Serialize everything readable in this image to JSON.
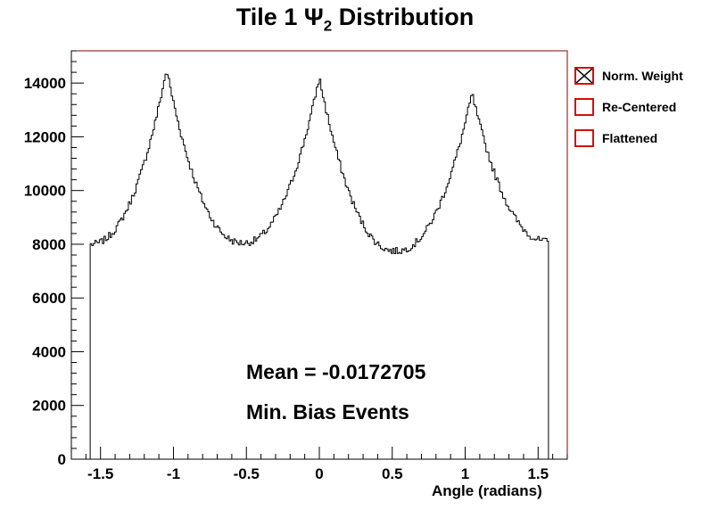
{
  "chart_data": {
    "type": "histogram",
    "title": "Tile 1",
    "title_symbol": "Ψ",
    "title_subscript": "2",
    "title_suffix": "Distribution",
    "xlabel": "Angle (radians)",
    "ylabel": "",
    "xlim": [
      -1.7,
      1.7
    ],
    "ylim": [
      0,
      15200
    ],
    "x_ticks": [
      -1.5,
      -1,
      -0.5,
      0,
      0.5,
      1,
      1.5
    ],
    "x_tick_labels": [
      "-1.5",
      "-1",
      "-0.5",
      "0",
      "0.5",
      "1",
      "1.5"
    ],
    "y_ticks": [
      0,
      2000,
      4000,
      6000,
      8000,
      10000,
      12000,
      14000
    ],
    "y_tick_labels": [
      "0",
      "2000",
      "4000",
      "6000",
      "8000",
      "10000",
      "12000",
      "14000"
    ],
    "x_range_filled": [
      -1.5708,
      1.5708
    ],
    "peaks": [
      {
        "x": -1.047,
        "value": 14500
      },
      {
        "x": 0.0,
        "value": 14200
      },
      {
        "x": 1.047,
        "value": 13600
      }
    ],
    "valleys": [
      {
        "x": -1.5708,
        "value": 8000
      },
      {
        "x": -0.524,
        "value": 8050
      },
      {
        "x": 0.524,
        "value": 7750
      },
      {
        "x": 1.5708,
        "value": 8100
      }
    ],
    "annotations": {
      "mean": "Mean = -0.0172705",
      "events": "Min. Bias Events"
    },
    "legend": {
      "placement": "right",
      "entries": [
        {
          "label": "Norm. Weight",
          "marker": "crossed-box"
        },
        {
          "label": "Re-Centered",
          "marker": "box"
        },
        {
          "label": "Flattened",
          "marker": "box"
        }
      ]
    },
    "colors": {
      "histogram_line": "#000000",
      "legend_box": "#d01010",
      "axis_frame": "#8b0000"
    }
  }
}
